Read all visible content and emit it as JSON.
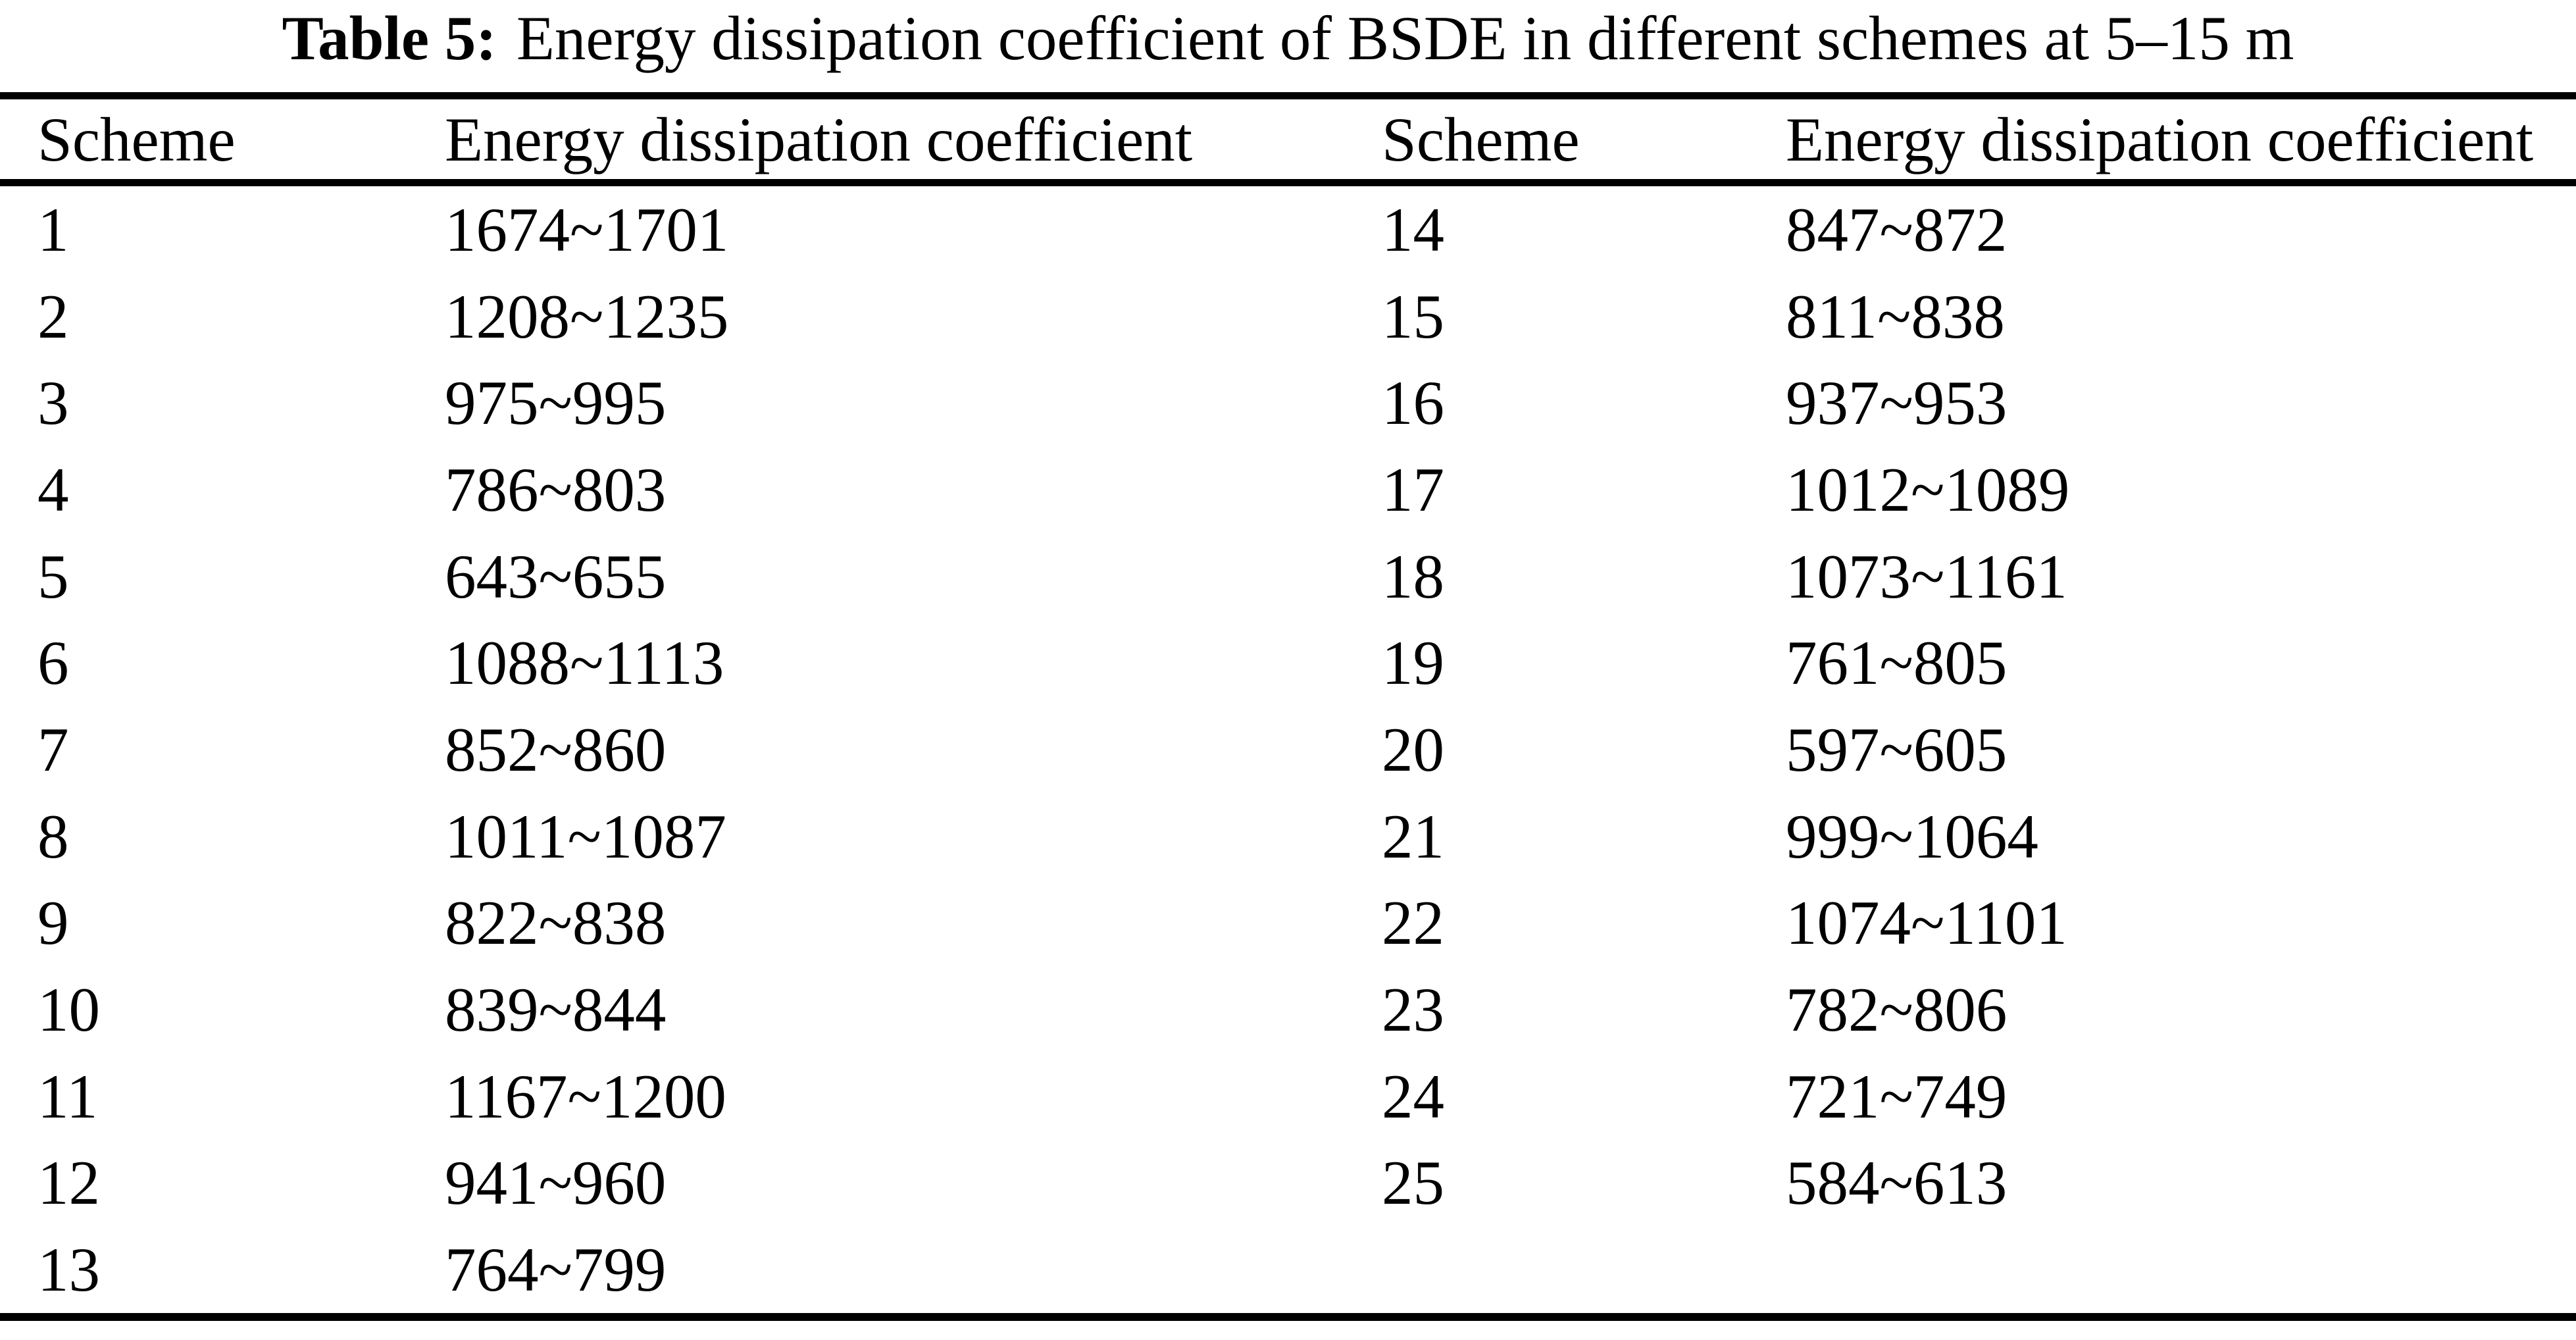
{
  "caption": {
    "label": "Table 5:",
    "text": "Energy dissipation coefficient of BSDE in different schemes at 5–15 m"
  },
  "table": {
    "headers": [
      "Scheme",
      "Energy dissipation coefficient",
      "Scheme",
      "Energy dissipation coefficient"
    ],
    "rows": [
      [
        "1",
        "1674~1701",
        "14",
        "847~872"
      ],
      [
        "2",
        "1208~1235",
        "15",
        "811~838"
      ],
      [
        "3",
        "975~995",
        "16",
        "937~953"
      ],
      [
        "4",
        "786~803",
        "17",
        "1012~1089"
      ],
      [
        "5",
        "643~655",
        "18",
        "1073~1161"
      ],
      [
        "6",
        "1088~1113",
        "19",
        "761~805"
      ],
      [
        "7",
        "852~860",
        "20",
        "597~605"
      ],
      [
        "8",
        "1011~1087",
        "21",
        "999~1064"
      ],
      [
        "9",
        "822~838",
        "22",
        "1074~1101"
      ],
      [
        "10",
        "839~844",
        "23",
        "782~806"
      ],
      [
        "11",
        "1167~1200",
        "24",
        "721~749"
      ],
      [
        "12",
        "941~960",
        "25",
        "584~613"
      ],
      [
        "13",
        "764~799",
        "",
        ""
      ]
    ]
  },
  "colors": {
    "background": "#ffffff",
    "text": "#000000",
    "rule": "#000000"
  }
}
